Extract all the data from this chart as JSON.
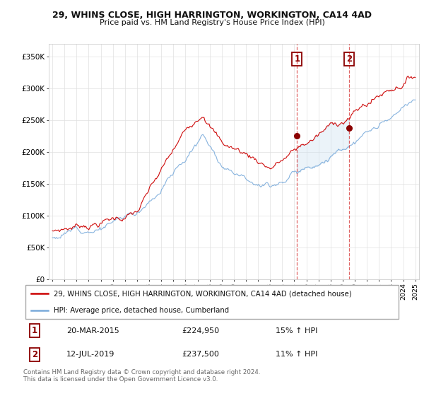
{
  "title1": "29, WHINS CLOSE, HIGH HARRINGTON, WORKINGTON, CA14 4AD",
  "title2": "Price paid vs. HM Land Registry's House Price Index (HPI)",
  "ylabel_ticks": [
    "£0",
    "£50K",
    "£100K",
    "£150K",
    "£200K",
    "£250K",
    "£300K",
    "£350K"
  ],
  "ylim": [
    0,
    370000
  ],
  "yticks": [
    0,
    50000,
    100000,
    150000,
    200000,
    250000,
    300000,
    350000
  ],
  "xlim_start": 1994.7,
  "xlim_end": 2025.3,
  "sale1_x": 2015.22,
  "sale1_y": 224950,
  "sale1_label": "1",
  "sale1_date": "20-MAR-2015",
  "sale1_price": "£224,950",
  "sale1_hpi": "15% ↑ HPI",
  "sale2_x": 2019.53,
  "sale2_y": 237500,
  "sale2_label": "2",
  "sale2_date": "12-JUL-2019",
  "sale2_price": "£237,500",
  "sale2_hpi": "11% ↑ HPI",
  "legend_line1": "29, WHINS CLOSE, HIGH HARRINGTON, WORKINGTON, CA14 4AD (detached house)",
  "legend_line2": "HPI: Average price, detached house, Cumberland",
  "footer": "Contains HM Land Registry data © Crown copyright and database right 2024.\nThis data is licensed under the Open Government Licence v3.0.",
  "line_color_red": "#cc0000",
  "line_color_blue": "#7aabdb",
  "shade_color": "#c8dff0",
  "background_color": "#ffffff",
  "grid_color": "#e0e0e0"
}
